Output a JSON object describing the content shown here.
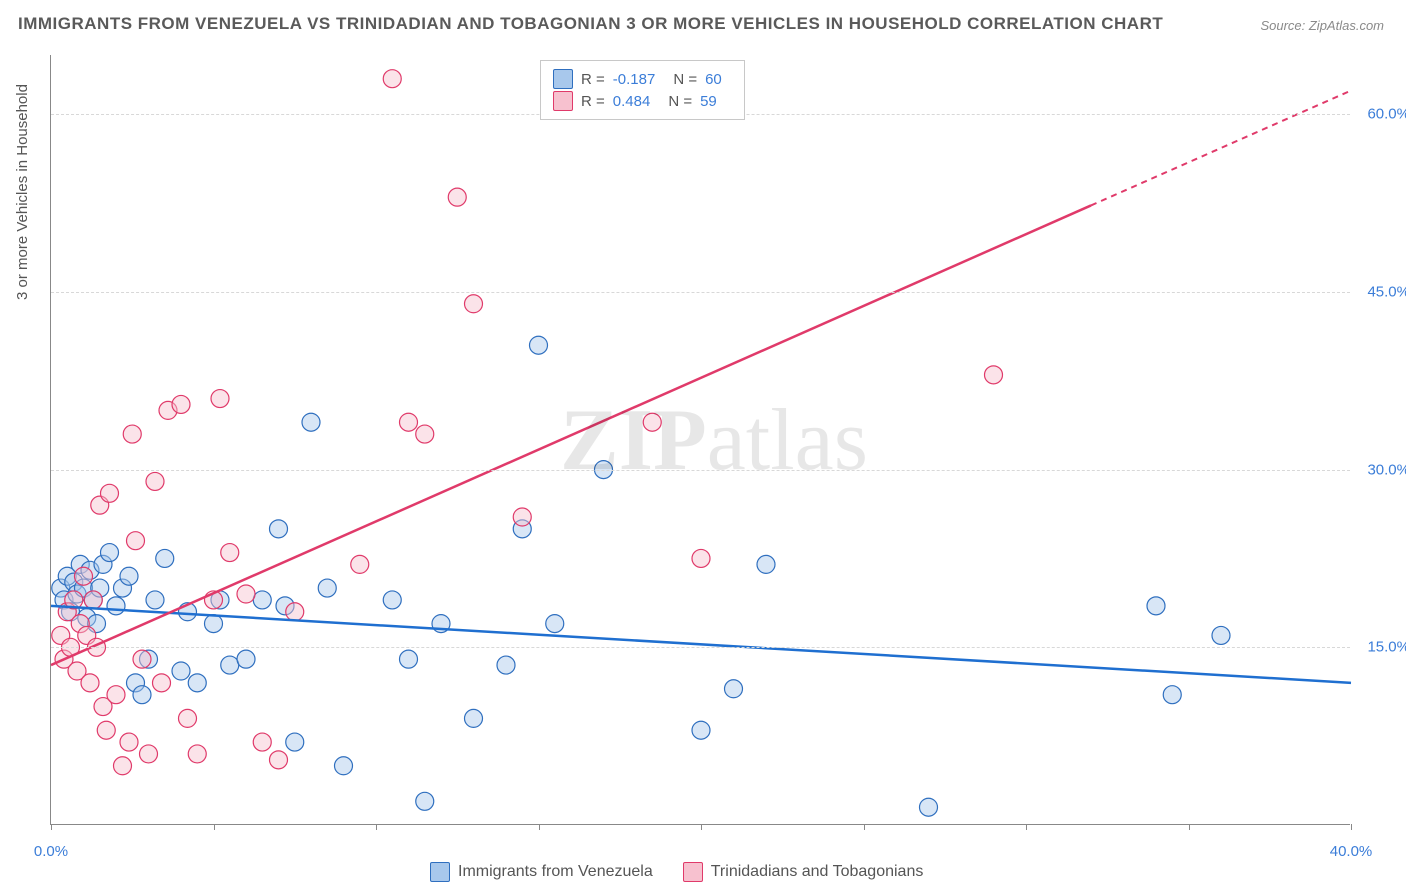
{
  "title": "IMMIGRANTS FROM VENEZUELA VS TRINIDADIAN AND TOBAGONIAN 3 OR MORE VEHICLES IN HOUSEHOLD CORRELATION CHART",
  "source": "Source: ZipAtlas.com",
  "watermark": {
    "bold": "ZIP",
    "rest": "atlas"
  },
  "y_axis": {
    "label": "3 or more Vehicles in Household"
  },
  "chart": {
    "type": "scatter",
    "background_color": "#ffffff",
    "grid_color": "#d8d8d8",
    "xlim": [
      0,
      40
    ],
    "ylim": [
      0,
      65
    ],
    "x_ticks": [
      0,
      5,
      10,
      15,
      20,
      25,
      30,
      35,
      40
    ],
    "x_tick_labels": [
      "0.0%",
      "",
      "",
      "",
      "",
      "",
      "",
      "",
      "40.0%"
    ],
    "y_ticks": [
      15,
      30,
      45,
      60
    ],
    "y_tick_labels": [
      "15.0%",
      "30.0%",
      "45.0%",
      "60.0%"
    ],
    "marker_radius": 9,
    "marker_opacity": 0.45,
    "trend_line_width": 2.5,
    "series": [
      {
        "name": "Immigrants from Venezuela",
        "fill_color": "#a8c8ec",
        "stroke_color": "#2f6fbf",
        "trend_color": "#1f6fd0",
        "R": "-0.187",
        "N": "60",
        "trend": {
          "x1": 0,
          "y1": 18.5,
          "x2": 40,
          "y2": 12.0,
          "dash_from_x": 40
        },
        "points": [
          [
            0.3,
            20
          ],
          [
            0.4,
            19
          ],
          [
            0.5,
            21
          ],
          [
            0.6,
            18
          ],
          [
            0.7,
            20.5
          ],
          [
            0.8,
            19.5
          ],
          [
            0.9,
            22
          ],
          [
            1.0,
            20
          ],
          [
            1.1,
            17.5
          ],
          [
            1.2,
            21.5
          ],
          [
            1.3,
            19
          ],
          [
            1.4,
            17
          ],
          [
            1.5,
            20
          ],
          [
            1.6,
            22
          ],
          [
            1.8,
            23
          ],
          [
            2.0,
            18.5
          ],
          [
            2.2,
            20
          ],
          [
            2.4,
            21
          ],
          [
            2.6,
            12
          ],
          [
            2.8,
            11
          ],
          [
            3.0,
            14
          ],
          [
            3.2,
            19
          ],
          [
            3.5,
            22.5
          ],
          [
            4.0,
            13
          ],
          [
            4.2,
            18
          ],
          [
            4.5,
            12
          ],
          [
            5.0,
            17
          ],
          [
            5.2,
            19
          ],
          [
            5.5,
            13.5
          ],
          [
            6.0,
            14
          ],
          [
            6.5,
            19
          ],
          [
            7.0,
            25
          ],
          [
            7.2,
            18.5
          ],
          [
            7.5,
            7
          ],
          [
            8.0,
            34
          ],
          [
            8.5,
            20
          ],
          [
            9.0,
            5
          ],
          [
            10.5,
            19
          ],
          [
            11.0,
            14
          ],
          [
            11.5,
            2
          ],
          [
            12.0,
            17
          ],
          [
            13.0,
            9
          ],
          [
            14.0,
            13.5
          ],
          [
            14.5,
            25
          ],
          [
            15.0,
            40.5
          ],
          [
            15.5,
            17
          ],
          [
            17.0,
            30
          ],
          [
            20.0,
            8
          ],
          [
            21.0,
            11.5
          ],
          [
            22.0,
            22
          ],
          [
            27.0,
            1.5
          ],
          [
            34.0,
            18.5
          ],
          [
            34.5,
            11
          ],
          [
            36.0,
            16
          ]
        ]
      },
      {
        "name": "Trinidadians and Tobagonians",
        "fill_color": "#f7c1cf",
        "stroke_color": "#e03a6a",
        "trend_color": "#e03a6a",
        "R": "0.484",
        "N": "59",
        "trend": {
          "x1": 0,
          "y1": 13.5,
          "x2": 40,
          "y2": 62,
          "dash_from_x": 32
        },
        "points": [
          [
            0.3,
            16
          ],
          [
            0.4,
            14
          ],
          [
            0.5,
            18
          ],
          [
            0.6,
            15
          ],
          [
            0.7,
            19
          ],
          [
            0.8,
            13
          ],
          [
            0.9,
            17
          ],
          [
            1.0,
            21
          ],
          [
            1.1,
            16
          ],
          [
            1.2,
            12
          ],
          [
            1.3,
            19
          ],
          [
            1.4,
            15
          ],
          [
            1.5,
            27
          ],
          [
            1.6,
            10
          ],
          [
            1.7,
            8
          ],
          [
            1.8,
            28
          ],
          [
            2.0,
            11
          ],
          [
            2.2,
            5
          ],
          [
            2.4,
            7
          ],
          [
            2.5,
            33
          ],
          [
            2.6,
            24
          ],
          [
            2.8,
            14
          ],
          [
            3.0,
            6
          ],
          [
            3.2,
            29
          ],
          [
            3.4,
            12
          ],
          [
            3.6,
            35
          ],
          [
            4.0,
            35.5
          ],
          [
            4.2,
            9
          ],
          [
            4.5,
            6
          ],
          [
            5.0,
            19
          ],
          [
            5.2,
            36
          ],
          [
            5.5,
            23
          ],
          [
            6.0,
            19.5
          ],
          [
            6.5,
            7
          ],
          [
            7.0,
            5.5
          ],
          [
            7.5,
            18
          ],
          [
            9.5,
            22
          ],
          [
            10.5,
            63
          ],
          [
            11.0,
            34
          ],
          [
            11.5,
            33
          ],
          [
            12.5,
            53
          ],
          [
            13.0,
            44
          ],
          [
            14.5,
            26
          ],
          [
            18.5,
            34
          ],
          [
            20.0,
            22.5
          ],
          [
            29.0,
            38
          ]
        ]
      }
    ]
  },
  "legend_top": {
    "rows": [
      {
        "swatch_fill": "#a8c8ec",
        "swatch_stroke": "#2f6fbf",
        "r_label": "R =",
        "r_val": "-0.187",
        "n_label": "N =",
        "n_val": "60"
      },
      {
        "swatch_fill": "#f7c1cf",
        "swatch_stroke": "#e03a6a",
        "r_label": "R =",
        "r_val": "0.484",
        "n_label": "N =",
        "n_val": "59"
      }
    ]
  },
  "legend_bottom": {
    "items": [
      {
        "swatch_fill": "#a8c8ec",
        "swatch_stroke": "#2f6fbf",
        "label": "Immigrants from Venezuela"
      },
      {
        "swatch_fill": "#f7c1cf",
        "swatch_stroke": "#e03a6a",
        "label": "Trinidadians and Tobagonians"
      }
    ]
  }
}
